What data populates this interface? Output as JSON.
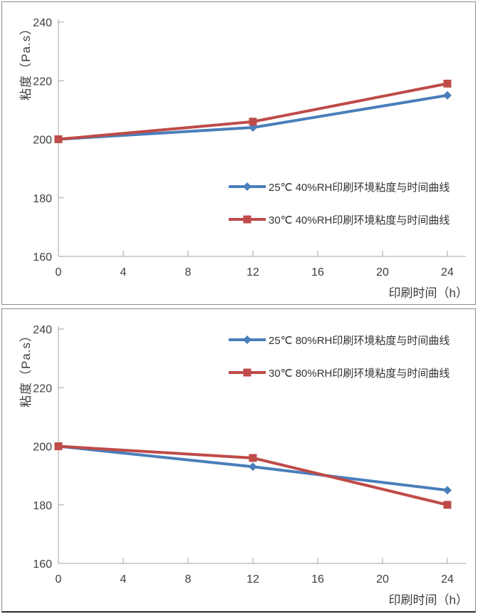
{
  "style": {
    "axis_color": "#a6a6a6",
    "text_color": "#3d3d3d",
    "series_blue": "#4a7ebb",
    "series_red": "#be4b48",
    "panel_border": "#8c8c8c"
  },
  "chart_data": [
    {
      "type": "line",
      "x": [
        0,
        12,
        24
      ],
      "series": [
        {
          "name": "25℃ 40%RH印刷环境粘度与时间曲线",
          "values": [
            200,
            204,
            215
          ],
          "color": "#4a7ebb",
          "marker": "diamond"
        },
        {
          "name": "30℃ 40%RH印刷环境粘度与时间曲线",
          "values": [
            200,
            206,
            219
          ],
          "color": "#be4b48",
          "marker": "square"
        }
      ],
      "xlabel": "印刷时间（h）",
      "ylabel": "粘度（Pa.s）",
      "xlim": [
        0,
        24
      ],
      "ylim": [
        160,
        240
      ],
      "x_ticks": [
        0,
        4,
        8,
        12,
        16,
        20,
        24
      ],
      "y_ticks": [
        160,
        180,
        200,
        220,
        240
      ],
      "grid": false,
      "legend_position": "inside-center-right"
    },
    {
      "type": "line",
      "x": [
        0,
        12,
        24
      ],
      "series": [
        {
          "name": "25℃ 80%RH印刷环境粘度与时间曲线",
          "values": [
            200,
            193,
            185
          ],
          "color": "#4a7ebb",
          "marker": "diamond"
        },
        {
          "name": "30℃ 80%RH印刷环境粘度与时间曲线",
          "values": [
            200,
            196,
            180
          ],
          "color": "#be4b48",
          "marker": "square"
        }
      ],
      "xlabel": "印刷时间（h）",
      "ylabel": "粘度（Pa.s）",
      "xlim": [
        0,
        24
      ],
      "ylim": [
        160,
        240
      ],
      "x_ticks": [
        0,
        4,
        8,
        12,
        16,
        20,
        24
      ],
      "y_ticks": [
        160,
        180,
        200,
        220,
        240
      ],
      "grid": false,
      "legend_position": "inside-top-right"
    }
  ]
}
